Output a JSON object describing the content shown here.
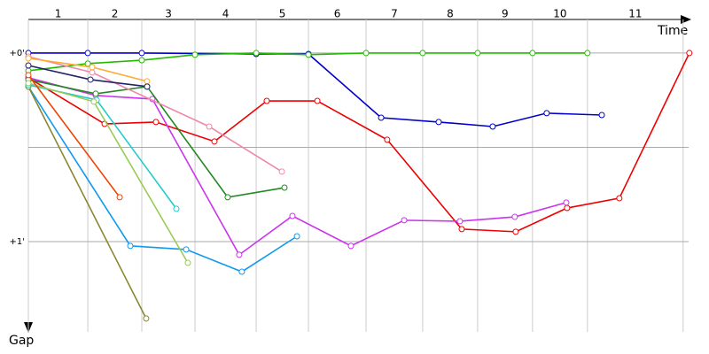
{
  "chart_data": {
    "type": "line",
    "x_axis_label": "Time",
    "y_axis_label": "Gap",
    "y_axis_direction": "down",
    "categories": [
      "1",
      "2",
      "3",
      "4",
      "5",
      "6",
      "7",
      "8",
      "9",
      "10",
      "11"
    ],
    "xlim": [
      0,
      3.498
    ],
    "xticks": [
      0,
      0.315,
      0.601,
      0.883,
      1.207,
      1.484,
      1.789,
      2.089,
      2.38,
      2.671,
      2.962,
      3.469
    ],
    "ylim": [
      -0.178,
      1.479
    ],
    "yticks": [
      {
        "value": 0,
        "label": "+0'"
      },
      {
        "value": 0.5,
        "label": null
      },
      {
        "value": 1,
        "label": "+1'"
      }
    ],
    "grid": true,
    "series": [
      {
        "color": "#0000cc",
        "x": [
          0,
          0.315,
          0.601,
          1.207,
          1.484,
          1.869,
          2.174,
          2.46,
          2.746,
          3.038
        ],
        "values": [
          0,
          0,
          0,
          0.005,
          0.005,
          0.343,
          0.366,
          0.39,
          0.319,
          0.329
        ]
      },
      {
        "color": "#22bb00",
        "x": [
          0,
          0.315,
          0.601,
          0.883,
          1.207,
          1.484,
          1.789,
          2.089,
          2.38,
          2.671,
          2.962
        ],
        "values": [
          0.094,
          0.056,
          0.038,
          0.009,
          0,
          0.009,
          0,
          0,
          0,
          0,
          0
        ]
      },
      {
        "color": "#ee0000",
        "x": [
          0,
          0.404,
          0.676,
          0.986,
          1.263,
          1.531,
          1.901,
          2.296,
          2.582,
          2.854,
          3.131,
          3.502
        ],
        "values": [
          0.131,
          0.376,
          0.366,
          0.469,
          0.254,
          0.254,
          0.46,
          0.934,
          0.948,
          0.822,
          0.77,
          0
        ]
      },
      {
        "color": "#cc33ee",
        "x": [
          0,
          0.357,
          0.657,
          1.117,
          1.399,
          1.709,
          1.991,
          2.286,
          2.577,
          2.85
        ],
        "values": [
          0.131,
          0.225,
          0.244,
          1.07,
          0.864,
          1.023,
          0.887,
          0.892,
          0.869,
          0.793
        ]
      },
      {
        "color": "#1199ee",
        "x": [
          0,
          0.54,
          0.836,
          1.131,
          1.423
        ],
        "values": [
          0.178,
          1.023,
          1.042,
          1.16,
          0.972
        ]
      },
      {
        "color": "#888833",
        "x": [
          0,
          0.624
        ],
        "values": [
          0.178,
          1.408
        ]
      },
      {
        "color": "#228822",
        "x": [
          0,
          0.357,
          0.629,
          1.056,
          1.357
        ],
        "values": [
          0.141,
          0.216,
          0.178,
          0.765,
          0.714
        ]
      },
      {
        "color": "#22cccc",
        "x": [
          0,
          0.362,
          0.784
        ],
        "values": [
          0.169,
          0.249,
          0.826
        ]
      },
      {
        "color": "#99cc55",
        "x": [
          0,
          0.347,
          0.845
        ],
        "values": [
          0.16,
          0.258,
          1.113
        ]
      },
      {
        "color": "#ee4400",
        "x": [
          0,
          0.484
        ],
        "values": [
          0.117,
          0.765
        ]
      },
      {
        "color": "#ee88aa",
        "x": [
          0,
          0.338,
          0.958,
          1.343
        ],
        "values": [
          0.019,
          0.103,
          0.39,
          0.629
        ]
      },
      {
        "color": "#ffaa33",
        "x": [
          0,
          0.338,
          0.629
        ],
        "values": [
          0.028,
          0.075,
          0.15
        ]
      },
      {
        "color": "#222266",
        "x": [
          0,
          0.329,
          0.629
        ],
        "values": [
          0.066,
          0.141,
          0.178
        ]
      }
    ]
  }
}
